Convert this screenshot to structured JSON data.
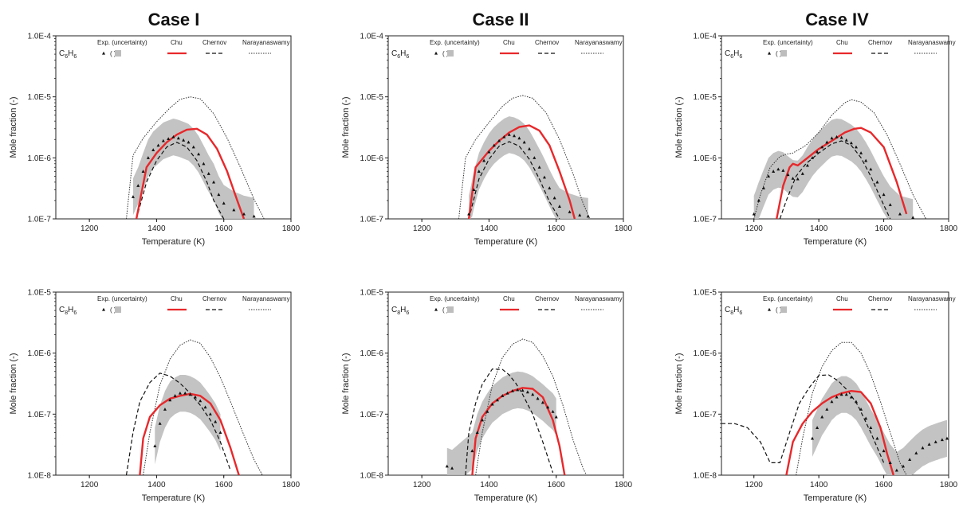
{
  "case_titles": [
    "Case I",
    "Case II",
    "Case IV"
  ],
  "legend": {
    "exp": "Exp. (uncertainty)",
    "exp_marker": "(  )",
    "chu": "Chu",
    "chernov": "Chernov",
    "narayanaswamy": "Narayanaswamy"
  },
  "colors": {
    "exp_marker": "#111111",
    "uncertainty": "#bdbdbd",
    "chu": "#e8282b",
    "chernov": "#111111",
    "narayanaswamy": "#333333"
  },
  "chart_data": [
    {
      "type": "line",
      "case": "Case I",
      "species": "C6H6",
      "log_y": true,
      "xlabel": "Temperature (K)",
      "ylabel": "Mole fraction (-)",
      "xlim": [
        1100,
        1800
      ],
      "ylim": [
        1e-07,
        0.0001
      ],
      "xticks": [
        "1200",
        "1400",
        "1600",
        "1800"
      ],
      "yticks": [
        "1.0E-7",
        "1.0E-6",
        "1.0E-5",
        "1.0E-4"
      ],
      "series": [
        {
          "name": "Chu",
          "x": [
            1340,
            1370,
            1400,
            1430,
            1460,
            1490,
            1520,
            1550,
            1580,
            1610,
            1640,
            1660
          ],
          "y": [
            1e-07,
            7e-07,
            1.2e-06,
            1.8e-06,
            2.4e-06,
            2.9e-06,
            3e-06,
            2.4e-06,
            1.4e-06,
            6e-07,
            2e-07,
            1e-07
          ]
        },
        {
          "name": "Chernov",
          "x": [
            1340,
            1370,
            1400,
            1430,
            1460,
            1490,
            1520,
            1550,
            1570,
            1600
          ],
          "y": [
            1e-07,
            4e-07,
            9e-07,
            1.5e-06,
            1.8e-06,
            1.5e-06,
            9e-07,
            4e-07,
            2e-07,
            1e-07
          ]
        },
        {
          "name": "Narayanaswamy",
          "x": [
            1310,
            1330,
            1360,
            1400,
            1440,
            1470,
            1500,
            1530,
            1570,
            1610,
            1650,
            1690,
            1720
          ],
          "y": [
            1e-07,
            1.1e-06,
            2.1e-06,
            3.9e-06,
            6.6e-06,
            9.1e-06,
            1e-05,
            9.3e-06,
            5.3e-06,
            2.1e-06,
            6.9e-07,
            2.1e-07,
            1e-07
          ]
        },
        {
          "name": "Exp.",
          "x": [
            1330,
            1345,
            1360,
            1375,
            1390,
            1405,
            1420,
            1435,
            1450,
            1465,
            1480,
            1495,
            1510,
            1525,
            1540,
            1555,
            1570,
            1585,
            1600,
            1630,
            1660,
            1690
          ],
          "y": [
            2.3e-07,
            3.5e-07,
            6e-07,
            1e-06,
            1.35e-06,
            1.6e-06,
            1.9e-06,
            2.05e-06,
            2.2e-06,
            2.1e-06,
            1.95e-06,
            1.8e-06,
            1.5e-06,
            1.15e-06,
            8e-07,
            5.5e-07,
            4e-07,
            2.5e-07,
            1.8e-07,
            1.4e-07,
            1.2e-07,
            1.1e-07
          ]
        }
      ]
    },
    {
      "type": "line",
      "case": "Case II",
      "species": "C6H6",
      "log_y": true,
      "xlabel": "Temperature (K)",
      "ylabel": "Mole fraction (-)",
      "xlim": [
        1100,
        1800
      ],
      "ylim": [
        1e-07,
        0.0001
      ],
      "xticks": [
        "1200",
        "1400",
        "1600",
        "1800"
      ],
      "yticks": [
        "1.0E-7",
        "1.0E-6",
        "1.0E-5",
        "1.0E-4"
      ],
      "series": [
        {
          "name": "Chu",
          "x": [
            1340,
            1360,
            1400,
            1430,
            1460,
            1490,
            1520,
            1550,
            1580,
            1610,
            1640,
            1655
          ],
          "y": [
            1e-07,
            7e-07,
            1.3e-06,
            1.9e-06,
            2.6e-06,
            3.2e-06,
            3.4e-06,
            2.8e-06,
            1.6e-06,
            6e-07,
            2e-07,
            1e-07
          ]
        },
        {
          "name": "Chernov",
          "x": [
            1340,
            1370,
            1400,
            1430,
            1460,
            1490,
            1520,
            1550,
            1580,
            1610
          ],
          "y": [
            1e-07,
            4.5e-07,
            9.5e-07,
            1.55e-06,
            1.85e-06,
            1.55e-06,
            9.5e-07,
            4.5e-07,
            1.9e-07,
            1e-07
          ]
        },
        {
          "name": "Narayanaswamy",
          "x": [
            1310,
            1330,
            1360,
            1400,
            1440,
            1470,
            1500,
            1530,
            1570,
            1610,
            1650,
            1680,
            1700
          ],
          "y": [
            1e-07,
            1e-06,
            2e-06,
            3.8e-06,
            7e-06,
            9.5e-06,
            1.05e-05,
            9.5e-06,
            5.5e-06,
            2e-06,
            5.5e-07,
            1.8e-07,
            1e-07
          ]
        },
        {
          "name": "Exp.",
          "x": [
            1340,
            1355,
            1370,
            1385,
            1400,
            1415,
            1430,
            1445,
            1460,
            1475,
            1490,
            1505,
            1520,
            1535,
            1550,
            1565,
            1580,
            1595,
            1610,
            1640,
            1670,
            1695
          ],
          "y": [
            1.2e-07,
            3e-07,
            6e-07,
            9e-07,
            1.25e-06,
            1.6e-06,
            1.9e-06,
            2.2e-06,
            2.4e-06,
            2.3e-06,
            2.1e-06,
            1.8e-06,
            1.4e-06,
            1e-06,
            7e-07,
            4.8e-07,
            3.2e-07,
            2.2e-07,
            1.6e-07,
            1.3e-07,
            1.15e-07,
            1.1e-07
          ]
        }
      ]
    },
    {
      "type": "line",
      "case": "Case IV",
      "species": "C6H6",
      "log_y": true,
      "xlabel": "Temperature (K)",
      "ylabel": "Mole fraction (-)",
      "xlim": [
        1100,
        1800
      ],
      "ylim": [
        1e-07,
        0.0001
      ],
      "xticks": [
        "1200",
        "1400",
        "1600",
        "1800"
      ],
      "yticks": [
        "1.0E-7",
        "1.0E-6",
        "1.0E-5",
        "1.0E-4"
      ],
      "series": [
        {
          "name": "Chu",
          "x": [
            1270,
            1290,
            1310,
            1320,
            1335,
            1360,
            1400,
            1440,
            1480,
            1510,
            1530,
            1560,
            1600,
            1640,
            1670
          ],
          "y": [
            1e-07,
            3.5e-07,
            7e-07,
            8e-07,
            7.5e-07,
            9.5e-07,
            1.4e-06,
            1.9e-06,
            2.6e-06,
            3e-06,
            3.1e-06,
            2.6e-06,
            1.5e-06,
            4e-07,
            1.2e-07
          ]
        },
        {
          "name": "Chernov",
          "x": [
            1280,
            1300,
            1330,
            1360,
            1400,
            1440,
            1470,
            1500,
            1530,
            1560,
            1590,
            1620
          ],
          "y": [
            1e-07,
            2e-07,
            5e-07,
            8e-07,
            1.2e-06,
            1.7e-06,
            1.9e-06,
            1.6e-06,
            1e-06,
            5e-07,
            2.2e-07,
            1e-07
          ]
        },
        {
          "name": "Narayanaswamy",
          "x": [
            1200,
            1220,
            1250,
            1280,
            1300,
            1320,
            1360,
            1400,
            1440,
            1480,
            1500,
            1530,
            1570,
            1610,
            1650,
            1690,
            1730
          ],
          "y": [
            1e-07,
            2.5e-07,
            7e-07,
            1.05e-06,
            1.15e-06,
            1.2e-06,
            1.6e-06,
            2.6e-06,
            5e-06,
            8e-06,
            9e-06,
            8.2e-06,
            5.5e-06,
            2.4e-06,
            8e-07,
            2.5e-07,
            1e-07
          ]
        },
        {
          "name": "Exp.",
          "x": [
            1200,
            1215,
            1230,
            1245,
            1260,
            1275,
            1290,
            1305,
            1320,
            1335,
            1350,
            1365,
            1380,
            1395,
            1410,
            1425,
            1440,
            1455,
            1470,
            1485,
            1500,
            1515,
            1530,
            1545,
            1560,
            1580,
            1600,
            1620,
            1650,
            1690
          ],
          "y": [
            1.2e-07,
            2e-07,
            3.2e-07,
            5e-07,
            6e-07,
            6.5e-07,
            6.2e-07,
            5.3e-07,
            4.6e-07,
            4.5e-07,
            5.5e-07,
            7.5e-07,
            1e-06,
            1.25e-06,
            1.5e-06,
            1.8e-06,
            2.1e-06,
            2.2e-06,
            2.15e-06,
            1.95e-06,
            1.75e-06,
            1.5e-06,
            1.2e-06,
            9e-07,
            6.5e-07,
            4e-07,
            2.5e-07,
            1.7e-07,
            1.2e-07,
            1.05e-07
          ]
        }
      ]
    },
    {
      "type": "line",
      "case": "Case I",
      "species": "C8H6",
      "log_y": true,
      "xlabel": "Temperature (K)",
      "ylabel": "Mole fraction (-)",
      "xlim": [
        1100,
        1800
      ],
      "ylim": [
        1e-08,
        1e-05
      ],
      "xticks": [
        "1200",
        "1400",
        "1600",
        "1800"
      ],
      "yticks": [
        "1.0E-8",
        "1.0E-7",
        "1.0E-6",
        "1.0E-5"
      ],
      "series": [
        {
          "name": "Chu",
          "x": [
            1350,
            1360,
            1380,
            1410,
            1440,
            1470,
            1500,
            1530,
            1560,
            1590,
            1620,
            1645
          ],
          "y": [
            1e-08,
            4e-08,
            9e-08,
            1.4e-07,
            1.8e-07,
            2e-07,
            2.15e-07,
            2e-07,
            1.5e-07,
            8e-08,
            2.8e-08,
            1e-08
          ]
        },
        {
          "name": "Chernov",
          "x": [
            1310,
            1330,
            1350,
            1380,
            1410,
            1440,
            1470,
            1500,
            1530,
            1560,
            1590,
            1620
          ],
          "y": [
            1e-08,
            5e-08,
            1.6e-07,
            3.3e-07,
            4.7e-07,
            4.2e-07,
            3.2e-07,
            2.2e-07,
            1.4e-07,
            8e-08,
            3.5e-08,
            1.2e-08
          ]
        },
        {
          "name": "Narayanaswamy",
          "x": [
            1360,
            1380,
            1410,
            1440,
            1470,
            1500,
            1530,
            1560,
            1590,
            1620,
            1660,
            1690,
            1715
          ],
          "y": [
            1e-08,
            5e-08,
            3e-07,
            8e-07,
            1.35e-06,
            1.65e-06,
            1.45e-06,
            8.5e-07,
            4e-07,
            1.6e-07,
            4.5e-08,
            1.8e-08,
            1e-08
          ]
        },
        {
          "name": "Exp.",
          "x": [
            1395,
            1410,
            1425,
            1440,
            1455,
            1470,
            1485,
            1500,
            1515,
            1530,
            1545,
            1560,
            1575,
            1590
          ],
          "y": [
            3e-08,
            7e-08,
            1.2e-07,
            1.7e-07,
            2e-07,
            2.2e-07,
            2.2e-07,
            2.1e-07,
            1.9e-07,
            1.65e-07,
            1.3e-07,
            1e-07,
            7.5e-08,
            5e-08
          ]
        }
      ]
    },
    {
      "type": "line",
      "case": "Case II",
      "species": "C8H6",
      "log_y": true,
      "xlabel": "Temperature (K)",
      "ylabel": "Mole fraction (-)",
      "xlim": [
        1100,
        1800
      ],
      "ylim": [
        1e-08,
        1e-05
      ],
      "xticks": [
        "1200",
        "1400",
        "1600",
        "1800"
      ],
      "yticks": [
        "1.0E-8",
        "1.0E-7",
        "1.0E-6",
        "1.0E-5"
      ],
      "series": [
        {
          "name": "Chu",
          "x": [
            1350,
            1360,
            1380,
            1410,
            1440,
            1470,
            1500,
            1530,
            1560,
            1590,
            1610,
            1625
          ],
          "y": [
            1e-08,
            4e-08,
            9e-08,
            1.5e-07,
            2e-07,
            2.4e-07,
            2.7e-07,
            2.6e-07,
            1.9e-07,
            8e-08,
            3e-08,
            1e-08
          ]
        },
        {
          "name": "Chernov",
          "x": [
            1330,
            1340,
            1360,
            1380,
            1410,
            1440,
            1460,
            1480,
            1500,
            1530,
            1560,
            1590
          ],
          "y": [
            1e-08,
            5e-08,
            1.5e-07,
            3.1e-07,
            5.5e-07,
            5.4e-07,
            4.4e-07,
            3.2e-07,
            2.1e-07,
            1e-07,
            3.5e-08,
            1.1e-08
          ]
        },
        {
          "name": "Narayanaswamy",
          "x": [
            1360,
            1380,
            1410,
            1440,
            1470,
            1500,
            1530,
            1560,
            1590,
            1620,
            1650,
            1680,
            1690
          ],
          "y": [
            1e-08,
            5e-08,
            3e-07,
            8.5e-07,
            1.4e-06,
            1.7e-06,
            1.5e-06,
            9e-07,
            4.2e-07,
            1.4e-07,
            3.8e-08,
            1.3e-08,
            1e-08
          ]
        },
        {
          "name": "Exp.",
          "x": [
            1275,
            1290,
            1350,
            1365,
            1380,
            1395,
            1410,
            1425,
            1440,
            1455,
            1470,
            1485,
            1500,
            1515,
            1530,
            1545,
            1560,
            1575,
            1590,
            1600
          ],
          "y": [
            1.4e-08,
            1.3e-08,
            2.5e-08,
            5e-08,
            8e-08,
            1.1e-07,
            1.45e-07,
            1.7e-07,
            2e-07,
            2.2e-07,
            2.4e-07,
            2.5e-07,
            2.45e-07,
            2.3e-07,
            2.1e-07,
            1.8e-07,
            1.55e-07,
            1.3e-07,
            1.1e-07,
            9e-08
          ]
        }
      ]
    },
    {
      "type": "line",
      "case": "Case IV",
      "species": "C8H6",
      "log_y": true,
      "xlabel": "Temperature (K)",
      "ylabel": "Mole fraction (-)",
      "xlim": [
        1100,
        1800
      ],
      "ylim": [
        1e-08,
        1e-05
      ],
      "xticks": [
        "1200",
        "1400",
        "1600",
        "1800"
      ],
      "yticks": [
        "1.0E-8",
        "1.0E-7",
        "1.0E-6",
        "1.0E-5"
      ],
      "series": [
        {
          "name": "Chu",
          "x": [
            1300,
            1320,
            1350,
            1380,
            1410,
            1440,
            1470,
            1500,
            1530,
            1560,
            1590,
            1610,
            1630
          ],
          "y": [
            1e-08,
            3.5e-08,
            7e-08,
            1.1e-07,
            1.5e-07,
            1.9e-07,
            2.2e-07,
            2.4e-07,
            2.3e-07,
            1.5e-07,
            6e-08,
            2.3e-08,
            1e-08
          ]
        },
        {
          "name": "Chernov",
          "x": [
            1100,
            1140,
            1180,
            1220,
            1250,
            1280,
            1310,
            1340,
            1370,
            1400,
            1430,
            1460,
            1490,
            1520,
            1560,
            1600
          ],
          "y": [
            7e-08,
            7e-08,
            6e-08,
            3.5e-08,
            1.6e-08,
            1.6e-08,
            5e-08,
            1.5e-07,
            2.7e-07,
            4.3e-07,
            4.4e-07,
            3.5e-07,
            2.4e-07,
            1.4e-07,
            5e-08,
            1.6e-08
          ]
        },
        {
          "name": "Narayanaswamy",
          "x": [
            1330,
            1350,
            1380,
            1410,
            1440,
            1470,
            1500,
            1530,
            1560,
            1590,
            1620,
            1650,
            1670
          ],
          "y": [
            1e-08,
            4e-08,
            2.2e-07,
            6e-07,
            1.1e-06,
            1.5e-06,
            1.5e-06,
            1e-06,
            4.5e-07,
            1.6e-07,
            5e-08,
            1.6e-08,
            1e-08
          ]
        },
        {
          "name": "Exp.",
          "x": [
            1380,
            1395,
            1410,
            1425,
            1440,
            1455,
            1470,
            1485,
            1500,
            1515,
            1530,
            1545,
            1560,
            1580,
            1600,
            1620,
            1640,
            1660,
            1680,
            1700,
            1720,
            1740,
            1760,
            1780,
            1795
          ],
          "y": [
            4e-08,
            6e-08,
            9e-08,
            1.2e-07,
            1.6e-07,
            1.9e-07,
            2.1e-07,
            2.1e-07,
            1.9e-07,
            1.6e-07,
            1.2e-07,
            8.5e-08,
            6e-08,
            4e-08,
            2.5e-08,
            1.6e-08,
            1.2e-08,
            1.4e-08,
            1.8e-08,
            2.3e-08,
            2.8e-08,
            3.2e-08,
            3.5e-08,
            3.8e-08,
            4e-08
          ]
        }
      ]
    }
  ]
}
